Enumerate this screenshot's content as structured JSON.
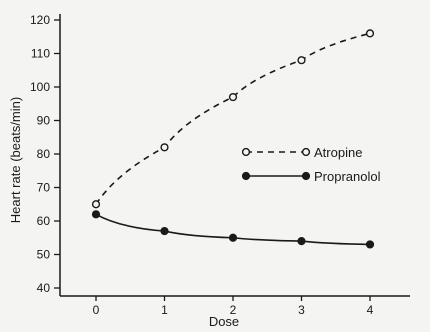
{
  "chart_data": {
    "type": "line",
    "xlabel": "Dose",
    "ylabel": "Heart rate (beats/min)",
    "xlim": [
      0,
      4
    ],
    "ylim": [
      40,
      120
    ],
    "xticks": [
      0,
      1,
      2,
      3,
      4
    ],
    "yticks": [
      40,
      50,
      60,
      70,
      80,
      90,
      100,
      110,
      120
    ],
    "grid": false,
    "legend_position": "right",
    "series": [
      {
        "name": "Atropine",
        "style": "dashed",
        "marker": "open-circle",
        "x": [
          0,
          1,
          2,
          3,
          4
        ],
        "y": [
          65,
          82,
          97,
          108,
          116
        ]
      },
      {
        "name": "Propranolol",
        "style": "solid",
        "marker": "filled-circle",
        "x": [
          0,
          1,
          2,
          3,
          4
        ],
        "y": [
          62,
          57,
          55,
          54,
          53
        ]
      }
    ]
  }
}
